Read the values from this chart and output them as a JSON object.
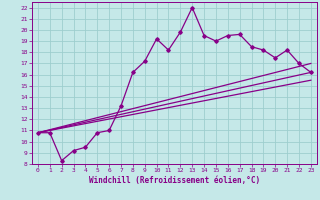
{
  "xlabel": "Windchill (Refroidissement éolien,°C)",
  "xlim": [
    -0.5,
    23.5
  ],
  "ylim": [
    8,
    22.5
  ],
  "xticks": [
    0,
    1,
    2,
    3,
    4,
    5,
    6,
    7,
    8,
    9,
    10,
    11,
    12,
    13,
    14,
    15,
    16,
    17,
    18,
    19,
    20,
    21,
    22,
    23
  ],
  "yticks": [
    8,
    9,
    10,
    11,
    12,
    13,
    14,
    15,
    16,
    17,
    18,
    19,
    20,
    21,
    22
  ],
  "bg_color": "#c5e8e8",
  "grid_color": "#9ecece",
  "line_color": "#880088",
  "main_x": [
    0,
    1,
    2,
    3,
    4,
    5,
    6,
    7,
    8,
    9,
    10,
    11,
    12,
    13,
    14,
    15,
    16,
    17,
    18,
    19,
    20,
    21,
    22,
    23
  ],
  "main_y": [
    10.8,
    10.8,
    8.3,
    9.2,
    9.5,
    10.8,
    11.0,
    13.2,
    16.2,
    17.2,
    19.2,
    18.2,
    19.8,
    22.0,
    19.5,
    19.0,
    19.5,
    19.6,
    18.5,
    18.2,
    17.5,
    18.2,
    17.0,
    16.2
  ],
  "line1_x": [
    0,
    23
  ],
  "line1_y": [
    10.8,
    15.5
  ],
  "line2_x": [
    0,
    23
  ],
  "line2_y": [
    10.8,
    16.2
  ],
  "line3_x": [
    0,
    23
  ],
  "line3_y": [
    10.8,
    17.0
  ]
}
